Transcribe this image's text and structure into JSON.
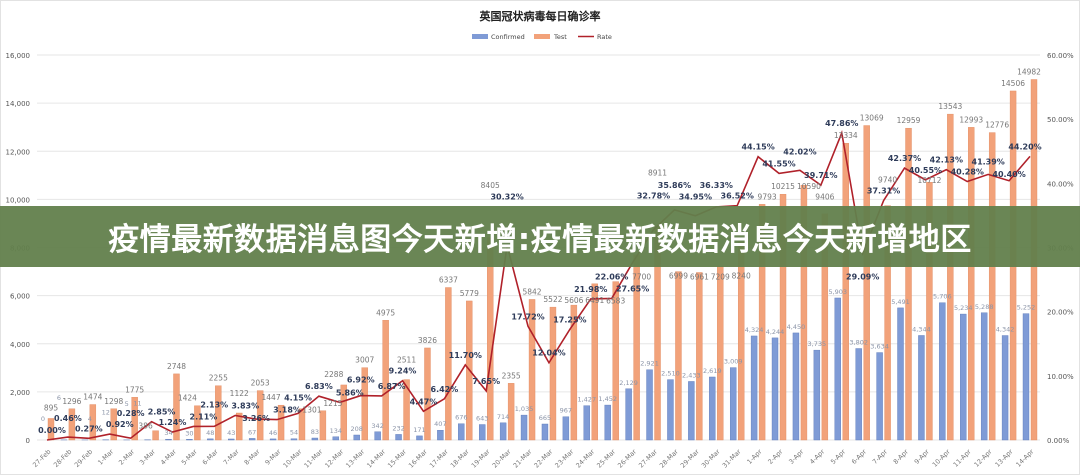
{
  "banner": {
    "headline": "疫情最新数据消息图今天新增:疫情最新数据消息今天新增地区"
  },
  "colors": {
    "confirmed": "#7f9bd6",
    "test": "#f2a27a",
    "rate": "#b0212a",
    "rate_label": "#2f3c5a",
    "grid": "#e6e6e6",
    "banner": "#62804c"
  },
  "chart_data": {
    "type": "bar+line",
    "title": "英国冠状病毒每日确诊率",
    "legend": {
      "position": "top",
      "entries": [
        "Confirmed",
        "Test",
        "Rate"
      ]
    },
    "grid": true,
    "left_axis": {
      "ylim": [
        0,
        16000
      ],
      "ticks": [
        "0",
        "2,000",
        "4,000",
        "6,000",
        "8,000",
        "10,000",
        "12,000",
        "14,000",
        "16,000"
      ]
    },
    "right_axis": {
      "ylim": [
        0,
        60
      ],
      "ticks": [
        "0.00%",
        "10.00%",
        "20.00%",
        "30.00%",
        "40.00%",
        "50.00%",
        "60.00%"
      ]
    },
    "categories": [
      "27-Feb",
      "28-Feb",
      "29-Feb",
      "1-Mar",
      "2-Mar",
      "3-Mar",
      "4-Mar",
      "5-Mar",
      "6-Mar",
      "7-Mar",
      "8-Mar",
      "9-Mar",
      "10-Mar",
      "11-Mar",
      "12-Mar",
      "13-Mar",
      "14-Mar",
      "15-Mar",
      "16-Mar",
      "17-Mar",
      "18-Mar",
      "19-Mar",
      "20-Mar",
      "21-Mar",
      "22-Mar",
      "23-Mar",
      "24-Mar",
      "25-Mar",
      "26-Mar",
      "27-Mar",
      "28-Mar",
      "29-Mar",
      "30-Mar",
      "31-Mar",
      "1-Apr",
      "2-Apr",
      "3-Apr",
      "4-Apr",
      "5-Apr",
      "6-Apr",
      "7-Apr",
      "8-Apr",
      "9-Apr",
      "10-Apr",
      "11-Apr",
      "12-Apr",
      "13-Apr",
      "14-Apr"
    ],
    "series": [
      {
        "name": "Confirmed",
        "type": "bar",
        "axis": "left",
        "values": [
          0,
          6,
          4,
          12,
          5,
          11,
          34,
          30,
          48,
          43,
          67,
          46,
          54,
          83,
          134,
          208,
          342,
          232,
          171,
          407,
          676,
          643,
          714,
          1035,
          665,
          967,
          1427,
          1452,
          2129,
          2921,
          2510,
          2433,
          2619,
          3009,
          4324,
          4244,
          4450,
          3735,
          5903,
          3802,
          3634,
          5491,
          4344,
          5706,
          5234,
          5288,
          4342,
          5252
        ]
      },
      {
        "name": "Test",
        "type": "bar",
        "axis": "left",
        "values": [
          895,
          1296,
          1474,
          1298,
          1775,
          386,
          2748,
          1424,
          2255,
          1122,
          2053,
          1447,
          1301,
          1215,
          2288,
          3007,
          4975,
          2511,
          3826,
          6337,
          5779,
          8405,
          2355,
          5842,
          5522,
          5606,
          6491,
          6583,
          7700,
          8911,
          6999,
          6961,
          7209,
          8240,
          9793,
          10215,
          10590,
          9406,
          12334,
          13069,
          9740,
          12959,
          10712,
          13543,
          12993,
          12776,
          14506,
          14982
        ]
      },
      {
        "name": "Rate",
        "type": "line",
        "axis": "right",
        "unit": "%",
        "values": [
          0.0,
          0.46,
          0.27,
          0.92,
          0.28,
          2.85,
          1.24,
          2.11,
          2.13,
          3.83,
          3.26,
          3.18,
          4.15,
          6.83,
          5.86,
          6.92,
          6.87,
          9.24,
          4.47,
          6.42,
          11.7,
          7.65,
          30.32,
          17.72,
          12.04,
          17.25,
          21.98,
          22.06,
          27.65,
          32.78,
          35.86,
          34.95,
          36.33,
          36.52,
          44.15,
          41.55,
          42.02,
          39.71,
          47.86,
          29.09,
          37.31,
          42.37,
          40.55,
          42.13,
          40.28,
          41.39,
          40.4,
          44.2
        ]
      }
    ]
  }
}
